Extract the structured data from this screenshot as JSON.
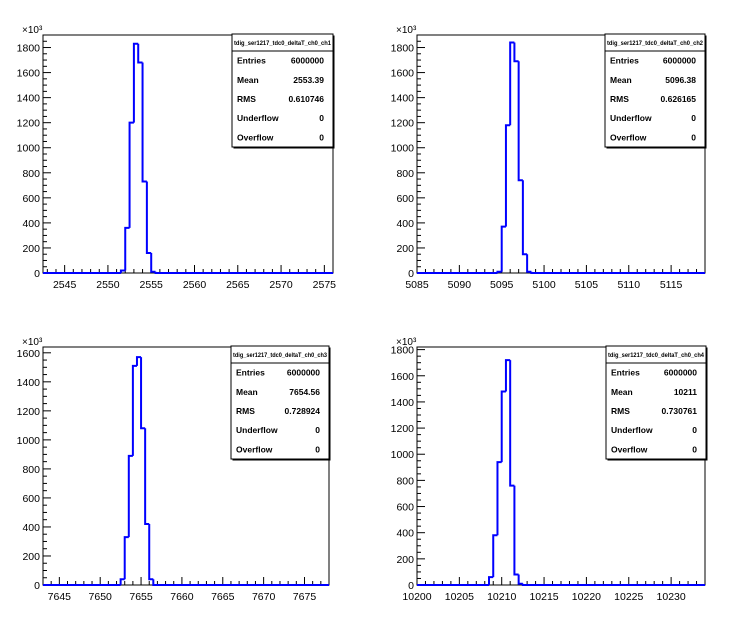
{
  "chart_data": [
    {
      "type": "bar",
      "title": "",
      "xlabel": "",
      "ylabel": "",
      "y_multiplier": "×10³",
      "xlim": [
        2542.5,
        2576
      ],
      "ylim": [
        0,
        1900
      ],
      "xticks": [
        2545,
        2550,
        2555,
        2560,
        2565,
        2570,
        2575
      ],
      "yticks": [
        0,
        200,
        400,
        600,
        800,
        1000,
        1200,
        1400,
        1600,
        1800
      ],
      "bin_width": 0.5,
      "x": [
        2551.5,
        2552,
        2552.5,
        2553,
        2553.5,
        2554,
        2554.5,
        2555
      ],
      "values": [
        20,
        360,
        1200,
        1830,
        1680,
        730,
        160,
        10
      ],
      "legend": "top-right",
      "stats": {
        "name": "tdig_ser1217_tdc0_deltaT_ch0_ch1",
        "rows": [
          {
            "label": "Entries",
            "value": "6000000"
          },
          {
            "label": "Mean",
            "value": "2553.39"
          },
          {
            "label": "RMS",
            "value": "0.610746"
          },
          {
            "label": "Underflow",
            "value": "0"
          },
          {
            "label": "Overflow",
            "value": "0"
          }
        ]
      }
    },
    {
      "type": "bar",
      "title": "",
      "xlabel": "",
      "ylabel": "",
      "y_multiplier": "×10³",
      "xlim": [
        5085,
        5119
      ],
      "ylim": [
        0,
        1900
      ],
      "xticks": [
        5085,
        5090,
        5095,
        5100,
        5105,
        5110,
        5115
      ],
      "yticks": [
        0,
        200,
        400,
        600,
        800,
        1000,
        1200,
        1400,
        1600,
        1800
      ],
      "bin_width": 0.5,
      "x": [
        5094.5,
        5095,
        5095.5,
        5096,
        5096.5,
        5097,
        5097.5,
        5098
      ],
      "values": [
        10,
        370,
        1180,
        1840,
        1690,
        740,
        150,
        10
      ],
      "legend": "top-right",
      "stats": {
        "name": "tdig_ser1217_tdc0_deltaT_ch0_ch2",
        "rows": [
          {
            "label": "Entries",
            "value": "6000000"
          },
          {
            "label": "Mean",
            "value": "5096.38"
          },
          {
            "label": "RMS",
            "value": "0.626165"
          },
          {
            "label": "Underflow",
            "value": "0"
          },
          {
            "label": "Overflow",
            "value": "0"
          }
        ]
      }
    },
    {
      "type": "bar",
      "title": "",
      "xlabel": "",
      "ylabel": "",
      "y_multiplier": "×10³",
      "xlim": [
        7643,
        7678
      ],
      "ylim": [
        0,
        1640
      ],
      "xticks": [
        7645,
        7650,
        7655,
        7660,
        7665,
        7670,
        7675
      ],
      "yticks": [
        0,
        200,
        400,
        600,
        800,
        1000,
        1200,
        1400,
        1600
      ],
      "bin_width": 0.5,
      "x": [
        7652.5,
        7653,
        7653.5,
        7654,
        7654.5,
        7655,
        7655.5,
        7656
      ],
      "values": [
        40,
        330,
        890,
        1510,
        1570,
        1080,
        420,
        40
      ],
      "legend": "top-right",
      "stats": {
        "name": "tdig_ser1217_tdc0_deltaT_ch0_ch3",
        "rows": [
          {
            "label": "Entries",
            "value": "6000000"
          },
          {
            "label": "Mean",
            "value": "7654.56"
          },
          {
            "label": "RMS",
            "value": "0.728924"
          },
          {
            "label": "Underflow",
            "value": "0"
          },
          {
            "label": "Overflow",
            "value": "0"
          }
        ]
      }
    },
    {
      "type": "bar",
      "title": "",
      "xlabel": "",
      "ylabel": "",
      "y_multiplier": "×10³",
      "xlim": [
        10200,
        10234
      ],
      "ylim": [
        0,
        1820
      ],
      "xticks": [
        10200,
        10205,
        10210,
        10215,
        10220,
        10225,
        10230
      ],
      "yticks": [
        0,
        200,
        400,
        600,
        800,
        1000,
        1200,
        1400,
        1600,
        1800
      ],
      "bin_width": 0.5,
      "x": [
        10208.5,
        10209,
        10209.5,
        10210,
        10210.5,
        10211,
        10211.5,
        10212
      ],
      "values": [
        60,
        380,
        940,
        1480,
        1720,
        760,
        80,
        10
      ],
      "legend": "top-right",
      "stats": {
        "name": "tdig_ser1217_tdc0_deltaT_ch0_ch4",
        "rows": [
          {
            "label": "Entries",
            "value": "6000000"
          },
          {
            "label": "Mean",
            "value": "10211"
          },
          {
            "label": "RMS",
            "value": "0.730761"
          },
          {
            "label": "Underflow",
            "value": "0"
          },
          {
            "label": "Overflow",
            "value": "0"
          }
        ]
      }
    }
  ],
  "colors": {
    "histogram_line": "#0000ff",
    "frame": "#000000",
    "background": "#ffffff"
  }
}
